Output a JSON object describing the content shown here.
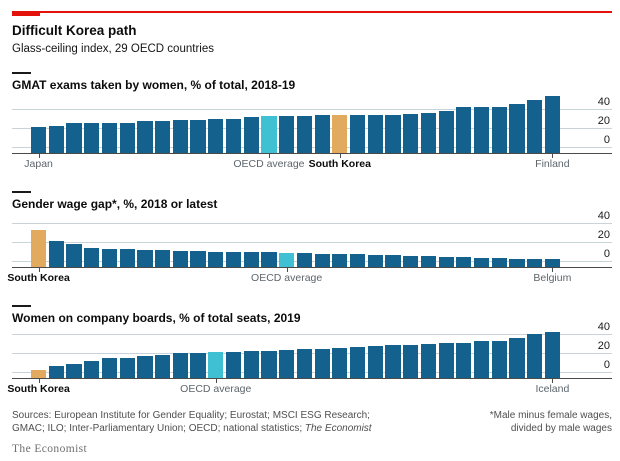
{
  "header": {
    "title": "Difficult Korea path",
    "subtitle": "Glass-ceiling index, 29 OECD countries"
  },
  "colors": {
    "accent_red": "#e3120b",
    "bar_blue": "#15618d",
    "bar_cyan": "#3fc1d3",
    "bar_tan": "#e2aa5f",
    "gridline": "#c9d4da",
    "axis": "#4a4a4a"
  },
  "chart_data": [
    {
      "type": "bar",
      "title": "GMAT exams taken by women, % of total, 2018-19",
      "ylabel": "% of total",
      "ylim": [
        0,
        60
      ],
      "yticks": [
        0,
        20,
        40
      ],
      "grid": true,
      "legend_position": "none",
      "values": [
        22,
        23,
        27,
        27,
        27,
        27,
        29,
        29,
        30,
        30,
        31,
        31,
        33,
        34,
        34,
        34,
        35,
        35,
        35,
        35,
        35,
        36,
        37,
        39,
        43,
        44,
        44,
        47,
        51,
        55
      ],
      "highlight_oecd_index": 13,
      "highlight_korea_index": 17,
      "labels": [
        {
          "index": 0,
          "text": "Japan",
          "bold": false
        },
        {
          "index": 13,
          "text": "OECD average",
          "bold": false
        },
        {
          "index": 17,
          "text": "South Korea",
          "bold": true
        },
        {
          "index": 29,
          "text": "Finland",
          "bold": false
        }
      ]
    },
    {
      "type": "bar",
      "title": "Gender wage gap*, %, 2018 or latest",
      "ylabel": "%",
      "ylim": [
        0,
        40
      ],
      "yticks": [
        0,
        20,
        40
      ],
      "grid": true,
      "legend_position": "none",
      "values": [
        34.5,
        22.5,
        19,
        15,
        14.5,
        13.5,
        13,
        12.5,
        12,
        11.5,
        11,
        11,
        10.5,
        10.5,
        10,
        9.5,
        9,
        8.5,
        8.5,
        8,
        7.5,
        7,
        6.5,
        6,
        5.5,
        5,
        4.5,
        4,
        3.5,
        3
      ],
      "highlight_oecd_index": 14,
      "highlight_korea_index": 0,
      "labels": [
        {
          "index": 0,
          "text": "South Korea",
          "bold": true
        },
        {
          "index": 14,
          "text": "OECD average",
          "bold": false
        },
        {
          "index": 29,
          "text": "Belgium",
          "bold": false
        }
      ]
    },
    {
      "type": "bar",
      "title": "Women on company boards, % of total seats, 2019",
      "ylabel": "% of total seats",
      "ylim": [
        0,
        45
      ],
      "yticks": [
        0,
        20,
        40
      ],
      "grid": true,
      "legend_position": "none",
      "values": [
        3,
        8,
        10,
        12.5,
        16,
        16.5,
        18,
        19.5,
        21,
        21.5,
        22,
        22.5,
        23,
        23.5,
        24.5,
        25.5,
        26,
        27,
        27.5,
        28.5,
        29.5,
        30,
        30.5,
        31.5,
        32,
        33.5,
        34.5,
        37,
        41.5,
        43.5
      ],
      "highlight_oecd_index": 10,
      "highlight_korea_index": 0,
      "labels": [
        {
          "index": 0,
          "text": "South Korea",
          "bold": true
        },
        {
          "index": 10,
          "text": "OECD average",
          "bold": false
        },
        {
          "index": 29,
          "text": "Iceland",
          "bold": false
        }
      ]
    }
  ],
  "footer": {
    "sources_line1": "Sources: European Institute for Gender Equality; Eurostat; MSCI ESG Research;",
    "sources_line2_prefix": "GMAC; ILO; Inter-Parliamentary Union; OECD; national statistics; ",
    "sources_line2_italic": "The Economist",
    "footnote_line1": "*Male minus female wages,",
    "footnote_line2": "divided by male wages",
    "wordmark": "The Economist"
  }
}
